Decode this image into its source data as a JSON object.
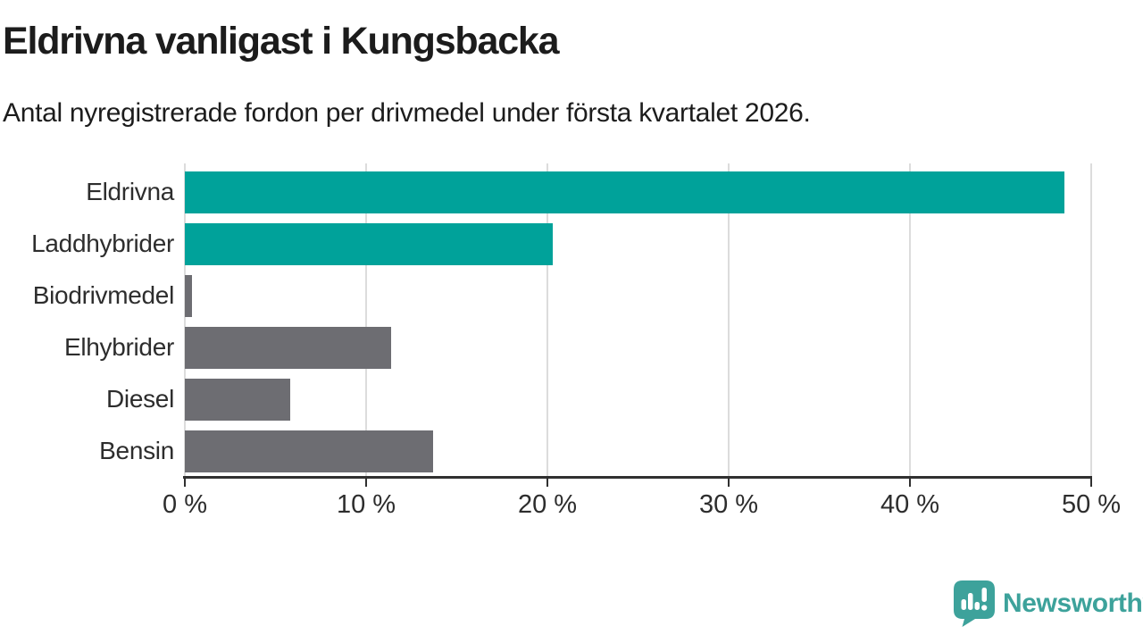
{
  "chart_data": {
    "type": "bar",
    "orientation": "horizontal",
    "title": "Eldrivna vanligast i Kungsbacka",
    "subtitle": "Antal nyregistrerade fordon per drivmedel under första kvartalet 2026.",
    "categories": [
      "Eldrivna",
      "Laddhybrider",
      "Biodrivmedel",
      "Elhybrider",
      "Diesel",
      "Bensin"
    ],
    "values": [
      48.5,
      20.3,
      0.4,
      11.4,
      5.8,
      13.7
    ],
    "unit": "%",
    "xlim": [
      0,
      50
    ],
    "x_ticks": [
      0,
      10,
      20,
      30,
      40,
      50
    ],
    "x_tick_labels": [
      "0 %",
      "10 %",
      "20 %",
      "30 %",
      "40 %",
      "50 %"
    ],
    "bar_colors": [
      "#00a29a",
      "#00a29a",
      "#6d6d72",
      "#6d6d72",
      "#6d6d72",
      "#6d6d72"
    ],
    "accent_color": "#00a29a",
    "default_color": "#6d6d72",
    "grid": true,
    "legend": "none"
  },
  "footer": {
    "brand": "Newsworthy",
    "brand_color": "#3da29b",
    "logo_icon": "newsworthy-logo-icon"
  }
}
